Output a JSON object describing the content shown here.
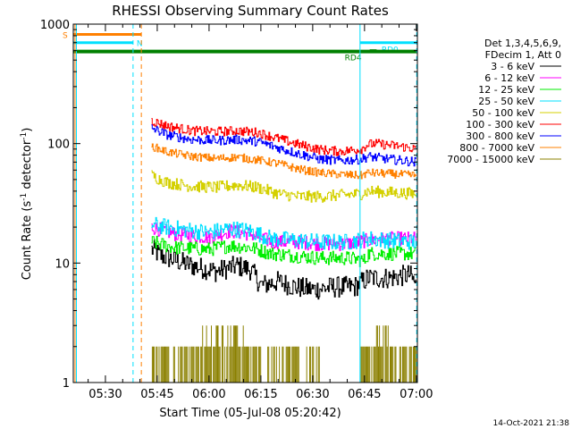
{
  "chart_data": {
    "type": "line",
    "title": "RHESSI Observing Summary Count Rates",
    "xlabel": "Start Time (05-Jul-08 05:20:42)",
    "ylabel_main": "Count Rate (s",
    "ylabel_sup1": "-1",
    "ylabel_mid": " detector",
    "ylabel_sup2": "-1",
    "ylabel_end": ")",
    "x_unit": "minutes since 05:20",
    "xlim": [
      0.7,
      100.3
    ],
    "ylim": [
      1,
      1000
    ],
    "yscale": "log",
    "xticks": [
      {
        "t": 10,
        "label": "05:30"
      },
      {
        "t": 25,
        "label": "05:45"
      },
      {
        "t": 40,
        "label": "06:00"
      },
      {
        "t": 55,
        "label": "06:15"
      },
      {
        "t": 70,
        "label": "06:30"
      },
      {
        "t": 85,
        "label": "06:45"
      },
      {
        "t": 100,
        "label": "07:00"
      }
    ],
    "yticks": [
      {
        "v": 1,
        "label": "1"
      },
      {
        "v": 10,
        "label": "10"
      },
      {
        "v": 100,
        "label": "100"
      },
      {
        "v": 1000,
        "label": "1000"
      }
    ],
    "legend": {
      "placement": "right",
      "header": [
        "Det 1,3,4,5,6,9,",
        "FDecim 1, Att 0"
      ]
    },
    "series": [
      {
        "name": "3 - 6 keV",
        "color": "#000000",
        "noise": 0.09,
        "points": [
          [
            23.3,
            13
          ],
          [
            26,
            11.5
          ],
          [
            35,
            9.5
          ],
          [
            42,
            8.5
          ],
          [
            48,
            9.5
          ],
          [
            52,
            8.8
          ],
          [
            55,
            6.5
          ],
          [
            60,
            7.0
          ],
          [
            65,
            6.3
          ],
          [
            70,
            6.0
          ],
          [
            76,
            6.3
          ],
          [
            82,
            6.3
          ],
          [
            86,
            7.5
          ],
          [
            92,
            7.5
          ],
          [
            98,
            8
          ],
          [
            100,
            6.5
          ]
        ]
      },
      {
        "name": "6 - 12 keV",
        "color": "#ff00ff",
        "noise": 0.06,
        "points": [
          [
            23.3,
            20
          ],
          [
            30,
            17.5
          ],
          [
            40,
            16.5
          ],
          [
            46,
            18.5
          ],
          [
            52,
            17.5
          ],
          [
            58,
            15
          ],
          [
            65,
            15
          ],
          [
            72,
            14.5
          ],
          [
            80,
            14.5
          ],
          [
            86,
            15.5
          ],
          [
            92,
            16
          ],
          [
            100,
            16
          ]
        ]
      },
      {
        "name": "12 - 25 keV",
        "color": "#00ee00",
        "noise": 0.06,
        "points": [
          [
            23.3,
            15
          ],
          [
            30,
            13.5
          ],
          [
            40,
            13
          ],
          [
            46,
            14
          ],
          [
            52,
            13.5
          ],
          [
            58,
            12
          ],
          [
            65,
            11.5
          ],
          [
            72,
            11
          ],
          [
            80,
            11
          ],
          [
            85,
            10.5
          ],
          [
            86,
            12
          ],
          [
            92,
            12
          ],
          [
            100,
            12
          ]
        ]
      },
      {
        "name": "25 - 50 keV",
        "color": "#00e0ff",
        "noise": 0.07,
        "points": [
          [
            23.3,
            21
          ],
          [
            30,
            19.5
          ],
          [
            40,
            18
          ],
          [
            46,
            19.5
          ],
          [
            52,
            18.5
          ],
          [
            58,
            16
          ],
          [
            65,
            15.5
          ],
          [
            72,
            15
          ],
          [
            80,
            15
          ],
          [
            86,
            16
          ],
          [
            92,
            15.5
          ],
          [
            100,
            15
          ]
        ]
      },
      {
        "name": "50 - 100 keV",
        "color": "#d4d000",
        "noise": 0.05,
        "points": [
          [
            23.3,
            54
          ],
          [
            28,
            47
          ],
          [
            35,
            44
          ],
          [
            42,
            43
          ],
          [
            48,
            45
          ],
          [
            54,
            43
          ],
          [
            60,
            38
          ],
          [
            66,
            36
          ],
          [
            72,
            36
          ],
          [
            78,
            37
          ],
          [
            84,
            38
          ],
          [
            86,
            40
          ],
          [
            92,
            39
          ],
          [
            100,
            38
          ]
        ]
      },
      {
        "name": "100 - 300 keV",
        "color": "#ff0000",
        "noise": 0.04,
        "points": [
          [
            23.3,
            155
          ],
          [
            28,
            140
          ],
          [
            35,
            128
          ],
          [
            42,
            126
          ],
          [
            48,
            128
          ],
          [
            54,
            124
          ],
          [
            60,
            110
          ],
          [
            66,
            98
          ],
          [
            72,
            89
          ],
          [
            78,
            86
          ],
          [
            84,
            90
          ],
          [
            85.8,
            98
          ],
          [
            88,
            100
          ],
          [
            95,
            95
          ],
          [
            100,
            90
          ]
        ]
      },
      {
        "name": "300 - 800 keV",
        "color": "#0000ff",
        "noise": 0.04,
        "points": [
          [
            23.3,
            135
          ],
          [
            28,
            118
          ],
          [
            35,
            108
          ],
          [
            42,
            106
          ],
          [
            48,
            108
          ],
          [
            54,
            104
          ],
          [
            60,
            92
          ],
          [
            66,
            82
          ],
          [
            72,
            74
          ],
          [
            78,
            72
          ],
          [
            84,
            74
          ],
          [
            86,
            78
          ],
          [
            92,
            74
          ],
          [
            100,
            70
          ]
        ]
      },
      {
        "name": "800 - 7000 keV",
        "color": "#ff8000",
        "noise": 0.035,
        "points": [
          [
            23.3,
            95
          ],
          [
            28,
            85
          ],
          [
            35,
            78
          ],
          [
            42,
            75
          ],
          [
            48,
            77
          ],
          [
            54,
            73
          ],
          [
            60,
            68
          ],
          [
            66,
            61
          ],
          [
            72,
            57
          ],
          [
            78,
            55
          ],
          [
            84,
            54
          ],
          [
            86,
            57
          ],
          [
            92,
            56
          ],
          [
            100,
            54
          ]
        ]
      },
      {
        "name": "7000 - 15000 keV",
        "color": "#8b8000",
        "noise": 0,
        "points": []
      }
    ],
    "bars": [
      {
        "name": "S",
        "label": "S",
        "color": "#ff8000",
        "y": 820,
        "t_start": 0.7,
        "t_end": 20.4
      },
      {
        "name": "N",
        "label": "N",
        "color": "#00e0ff",
        "y": 700,
        "t_start": 0.7,
        "t_end": 18.0
      },
      {
        "name": "RD0",
        "label": "RD0",
        "color": "#00e0ff",
        "y": 700,
        "t_start": 83.7,
        "t_end": 100.3
      },
      {
        "name": "RD4",
        "label": "RD4",
        "color": "#008000",
        "y": 600,
        "t_start": 86.5,
        "t_end": 88.5
      },
      {
        "name": "green",
        "label": "",
        "color": "#008000",
        "y": 590,
        "t_start": 0.7,
        "t_end": 100.3
      }
    ],
    "vlines": [
      {
        "t": 1.2,
        "color": "#ff8000",
        "dash": false
      },
      {
        "t": 1.6,
        "color": "#00e0ff",
        "dash": false
      },
      {
        "t": 18.0,
        "color": "#00e0ff",
        "dash": true
      },
      {
        "t": 20.4,
        "color": "#ff8000",
        "dash": true
      },
      {
        "t": 83.7,
        "color": "#00e0ff",
        "dash": false
      },
      {
        "t": 100.1,
        "color": "#00e0ff",
        "dash": true
      }
    ]
  },
  "timestamp": "14-Oct-2021 21:38"
}
